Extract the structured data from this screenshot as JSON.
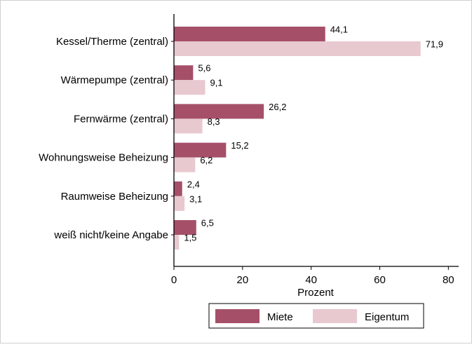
{
  "chart_data": {
    "type": "bar",
    "orientation": "horizontal",
    "categories": [
      "Kessel/Therme (zentral)",
      "Wärmepumpe (zentral)",
      "Fernwärme (zentral)",
      "Wohnungsweise Beheizung",
      "Raumweise Beheizung",
      "weiß nicht/keine Angabe"
    ],
    "series": [
      {
        "name": "Miete",
        "color": "#A55068",
        "values": [
          44.1,
          5.6,
          26.2,
          15.2,
          2.4,
          6.5
        ],
        "labels": [
          "44,1",
          "5,6",
          "26,2",
          "15,2",
          "2,4",
          "6,5"
        ]
      },
      {
        "name": "Eigentum",
        "color": "#E8C9D0",
        "values": [
          71.9,
          9.1,
          8.3,
          6.2,
          3.1,
          1.5
        ],
        "labels": [
          "71,9",
          "9,1",
          "8,3",
          "6,2",
          "3,1",
          "1,5"
        ]
      }
    ],
    "title": "",
    "xlabel": "Prozent",
    "ylabel": "",
    "xlim": [
      0,
      83
    ],
    "xticks": [
      0,
      20,
      40,
      60,
      80
    ],
    "xtick_labels": [
      "0",
      "20",
      "40",
      "60",
      "80"
    ],
    "grid": false,
    "legend_position": "bottom"
  }
}
